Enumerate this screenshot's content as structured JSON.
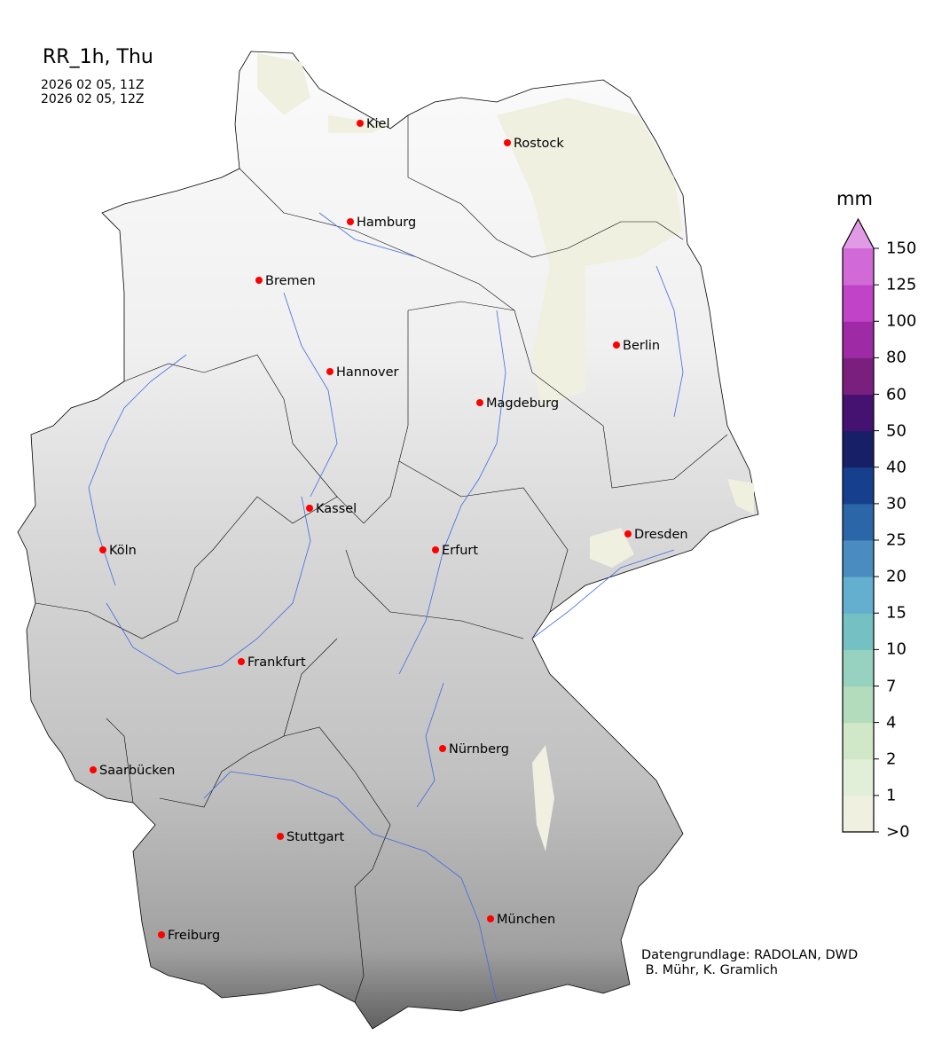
{
  "title": "RR_1h, Thu",
  "time_start": "2026 02 05, 11Z",
  "time_end": "2026 02 05, 12Z",
  "colorbar": {
    "unit": "mm",
    "labels": [
      ">0",
      "1",
      "2",
      "4",
      "7",
      "10",
      "15",
      "20",
      "25",
      "30",
      "40",
      "50",
      "60",
      "80",
      "100",
      "125",
      "150"
    ],
    "colors": [
      "#f0f0e0",
      "#e2efd8",
      "#d1e8c8",
      "#b3dcbc",
      "#97d2c1",
      "#75c0c2",
      "#64aed0",
      "#4a8cbf",
      "#2b67a8",
      "#163f8e",
      "#172066",
      "#461271",
      "#7a1f7e",
      "#9e2aa5",
      "#c043c8",
      "#d169d6"
    ],
    "extend_color": "#e19ae6"
  },
  "cities": [
    "Kiel",
    "Rostock",
    "Hamburg",
    "Bremen",
    "Berlin",
    "Hannover",
    "Magdeburg",
    "Kassel",
    "Köln",
    "Erfurt",
    "Dresden",
    "Frankfurt",
    "Nürnberg",
    "Saarbücken",
    "Stuttgart",
    "München",
    "Freiburg"
  ],
  "credit": "Datengrundlage: RADOLAN, DWD\n B. Mühr, K. Gramlich",
  "map_colors": {
    "terrain_light": "#f4f4f4",
    "terrain_dark": "#6e6e6e",
    "rivers": "#4169e1",
    "city_marker": "#ff0000"
  }
}
